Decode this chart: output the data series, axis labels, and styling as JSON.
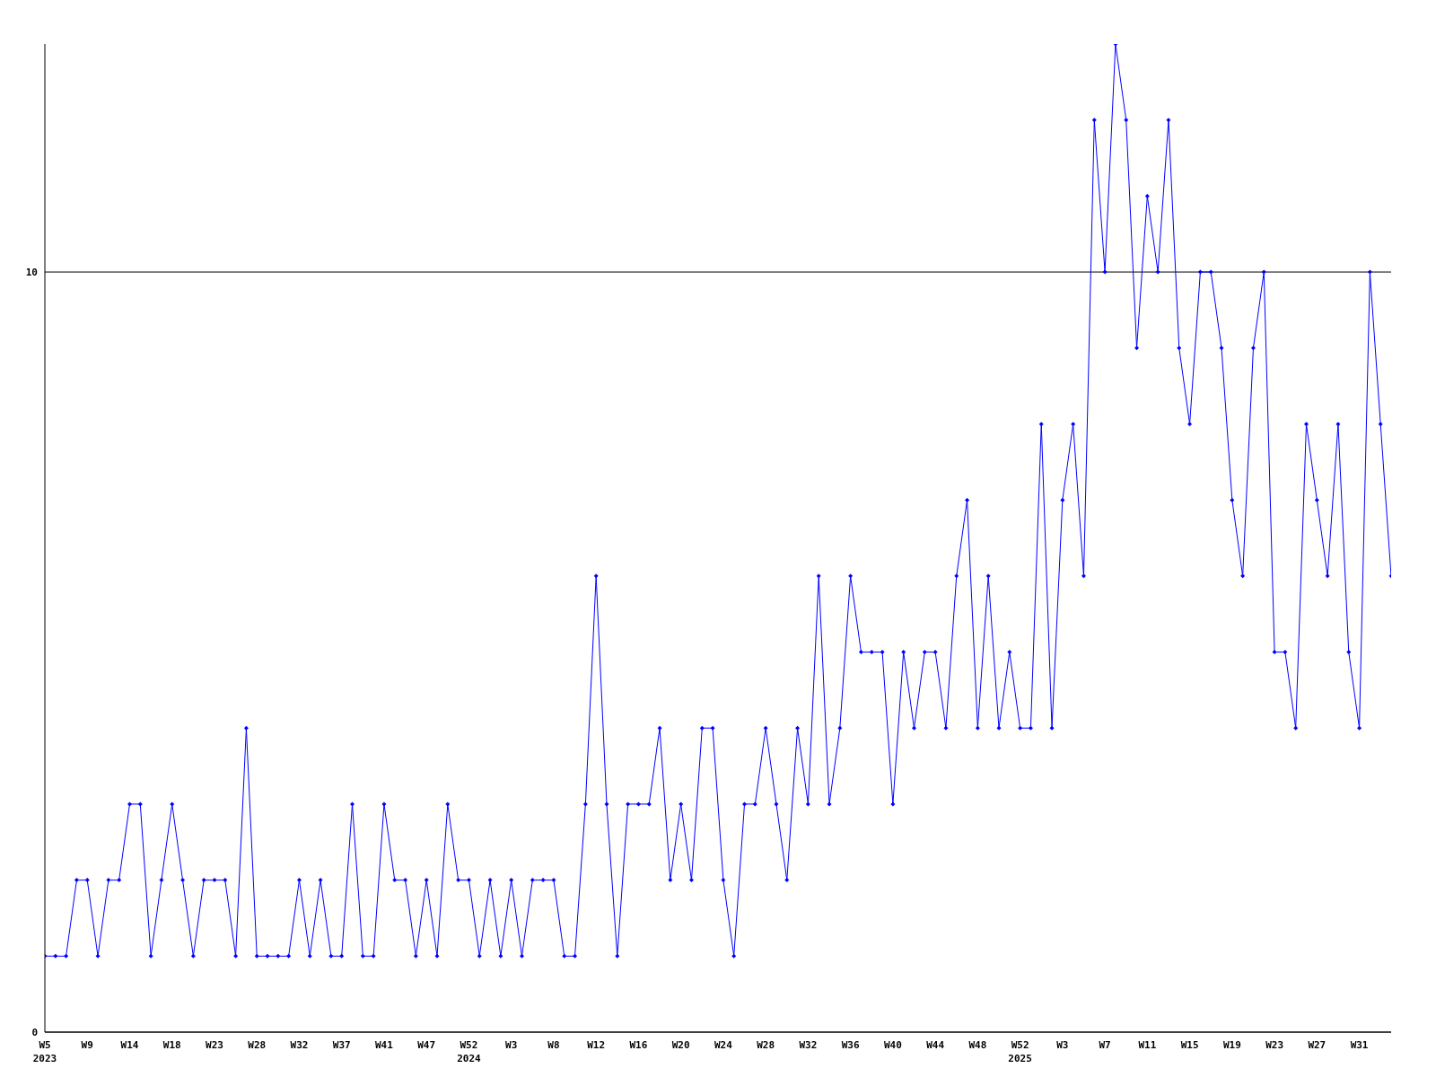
{
  "chart_data": {
    "type": "line",
    "categories": [
      "W5\n2023",
      null,
      null,
      null,
      "W9",
      null,
      null,
      null,
      "W14",
      null,
      null,
      null,
      "W18",
      null,
      null,
      null,
      "W23",
      null,
      null,
      null,
      "W28",
      null,
      null,
      null,
      "W32",
      null,
      null,
      null,
      "W37",
      null,
      null,
      null,
      "W41",
      null,
      null,
      null,
      "W47",
      null,
      null,
      null,
      "W52\n2024",
      null,
      null,
      null,
      "W3",
      null,
      null,
      null,
      "W8",
      null,
      null,
      null,
      "W12",
      null,
      null,
      null,
      "W16",
      null,
      null,
      null,
      "W20",
      null,
      null,
      null,
      "W24",
      null,
      null,
      null,
      "W28",
      null,
      null,
      null,
      "W32",
      null,
      null,
      null,
      "W36",
      null,
      null,
      null,
      "W40",
      null,
      null,
      null,
      "W44",
      null,
      null,
      null,
      "W48",
      null,
      null,
      null,
      "W52\n2025",
      null,
      null,
      null,
      "W3",
      null,
      null,
      null,
      "W7",
      null,
      null,
      null,
      "W11",
      null,
      null,
      null,
      "W15",
      null,
      null,
      null,
      "W19",
      null,
      null,
      null,
      "W23",
      null,
      null,
      null,
      "W27",
      null,
      null,
      null,
      "W31",
      null,
      null,
      null
    ],
    "series": [
      {
        "color": "#0000ff",
        "values": [
          1,
          1,
          1,
          2,
          2,
          1,
          2,
          2,
          3,
          3,
          1,
          2,
          3,
          2,
          1,
          2,
          2,
          2,
          1,
          4,
          1,
          1,
          1,
          1,
          2,
          1,
          2,
          1,
          1,
          3,
          1,
          1,
          3,
          2,
          2,
          1,
          2,
          1,
          3,
          2,
          2,
          1,
          2,
          1,
          2,
          1,
          2,
          2,
          2,
          1,
          1,
          3,
          6,
          3,
          1,
          3,
          3,
          3,
          4,
          2,
          3,
          2,
          4,
          4,
          2,
          1,
          3,
          3,
          4,
          3,
          2,
          4,
          3,
          6,
          3,
          4,
          6,
          5,
          5,
          5,
          3,
          5,
          4,
          5,
          5,
          4,
          6,
          7,
          4,
          6,
          4,
          5,
          4,
          4,
          8,
          4,
          7,
          8,
          6,
          12,
          10,
          13,
          12,
          9,
          11,
          10,
          12,
          9,
          8,
          10,
          10,
          9,
          7,
          6,
          9,
          10,
          5,
          5,
          4,
          8,
          7,
          6,
          8,
          5,
          4,
          10,
          8,
          6
        ]
      }
    ],
    "ylim": [
      0,
      13
    ],
    "yticks": [
      0,
      10
    ],
    "grid": "y",
    "marker": "diamond",
    "line_style": "solid"
  }
}
